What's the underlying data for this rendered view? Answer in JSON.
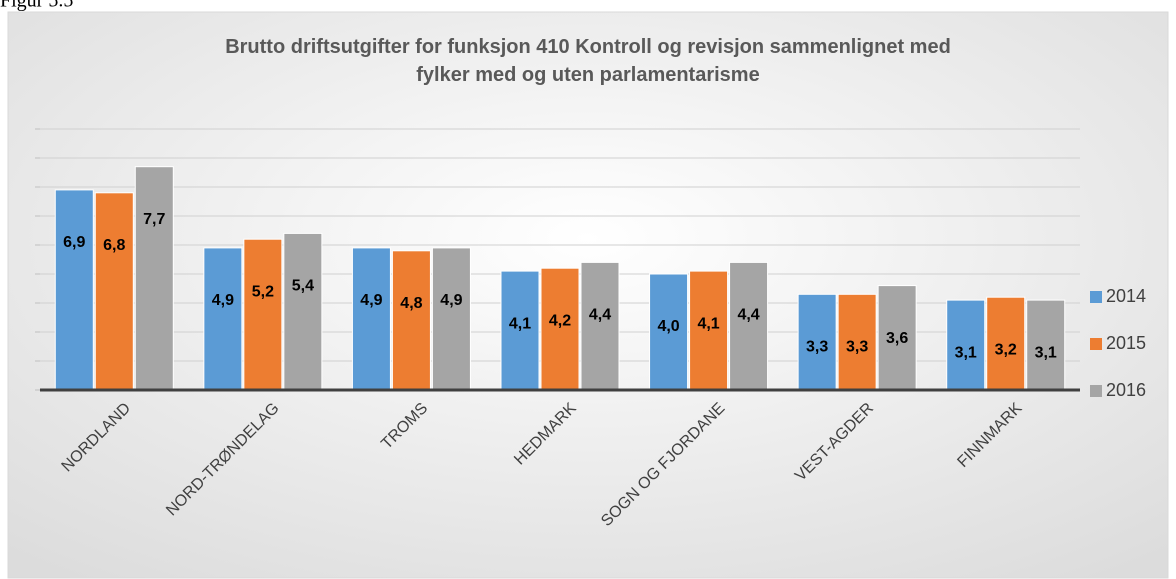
{
  "figure_label": "Figur 5.5",
  "chart_data": {
    "type": "bar",
    "title": "Brutto driftsutgifter for funksjon 410 Kontroll og revisjon sammenlignet med fylker med og uten parlamentarisme",
    "categories": [
      "NORDLAND",
      "NORD-TRØNDELAG",
      "TROMS",
      "HEDMARK",
      "SOGN OG FJORDANE",
      "VEST-AGDER",
      "FINNMARK"
    ],
    "series": [
      {
        "name": "2014",
        "color": "#5b9bd5",
        "values": [
          6.9,
          4.9,
          4.9,
          4.1,
          4.0,
          3.3,
          3.1
        ],
        "value_labels": [
          "6,9",
          "4,9",
          "4,9",
          "4,1",
          "4,0",
          "3,3",
          "3,1"
        ]
      },
      {
        "name": "2015",
        "color": "#ed7d31",
        "values": [
          6.8,
          5.2,
          4.8,
          4.2,
          4.1,
          3.3,
          3.2
        ],
        "value_labels": [
          "6,8",
          "5,2",
          "4,8",
          "4,2",
          "4,1",
          "3,3",
          "3,2"
        ]
      },
      {
        "name": "2016",
        "color": "#a5a5a5",
        "values": [
          7.7,
          5.4,
          4.9,
          4.4,
          4.4,
          3.6,
          3.1
        ],
        "value_labels": [
          "7,7",
          "5,4",
          "4,9",
          "4,4",
          "4,4",
          "3,6",
          "3,1"
        ]
      }
    ],
    "ylim": [
      0,
      9
    ],
    "yticks": [
      0,
      1,
      2,
      3,
      4,
      5,
      6,
      7,
      8,
      9
    ],
    "grid": true,
    "legend": "right"
  }
}
